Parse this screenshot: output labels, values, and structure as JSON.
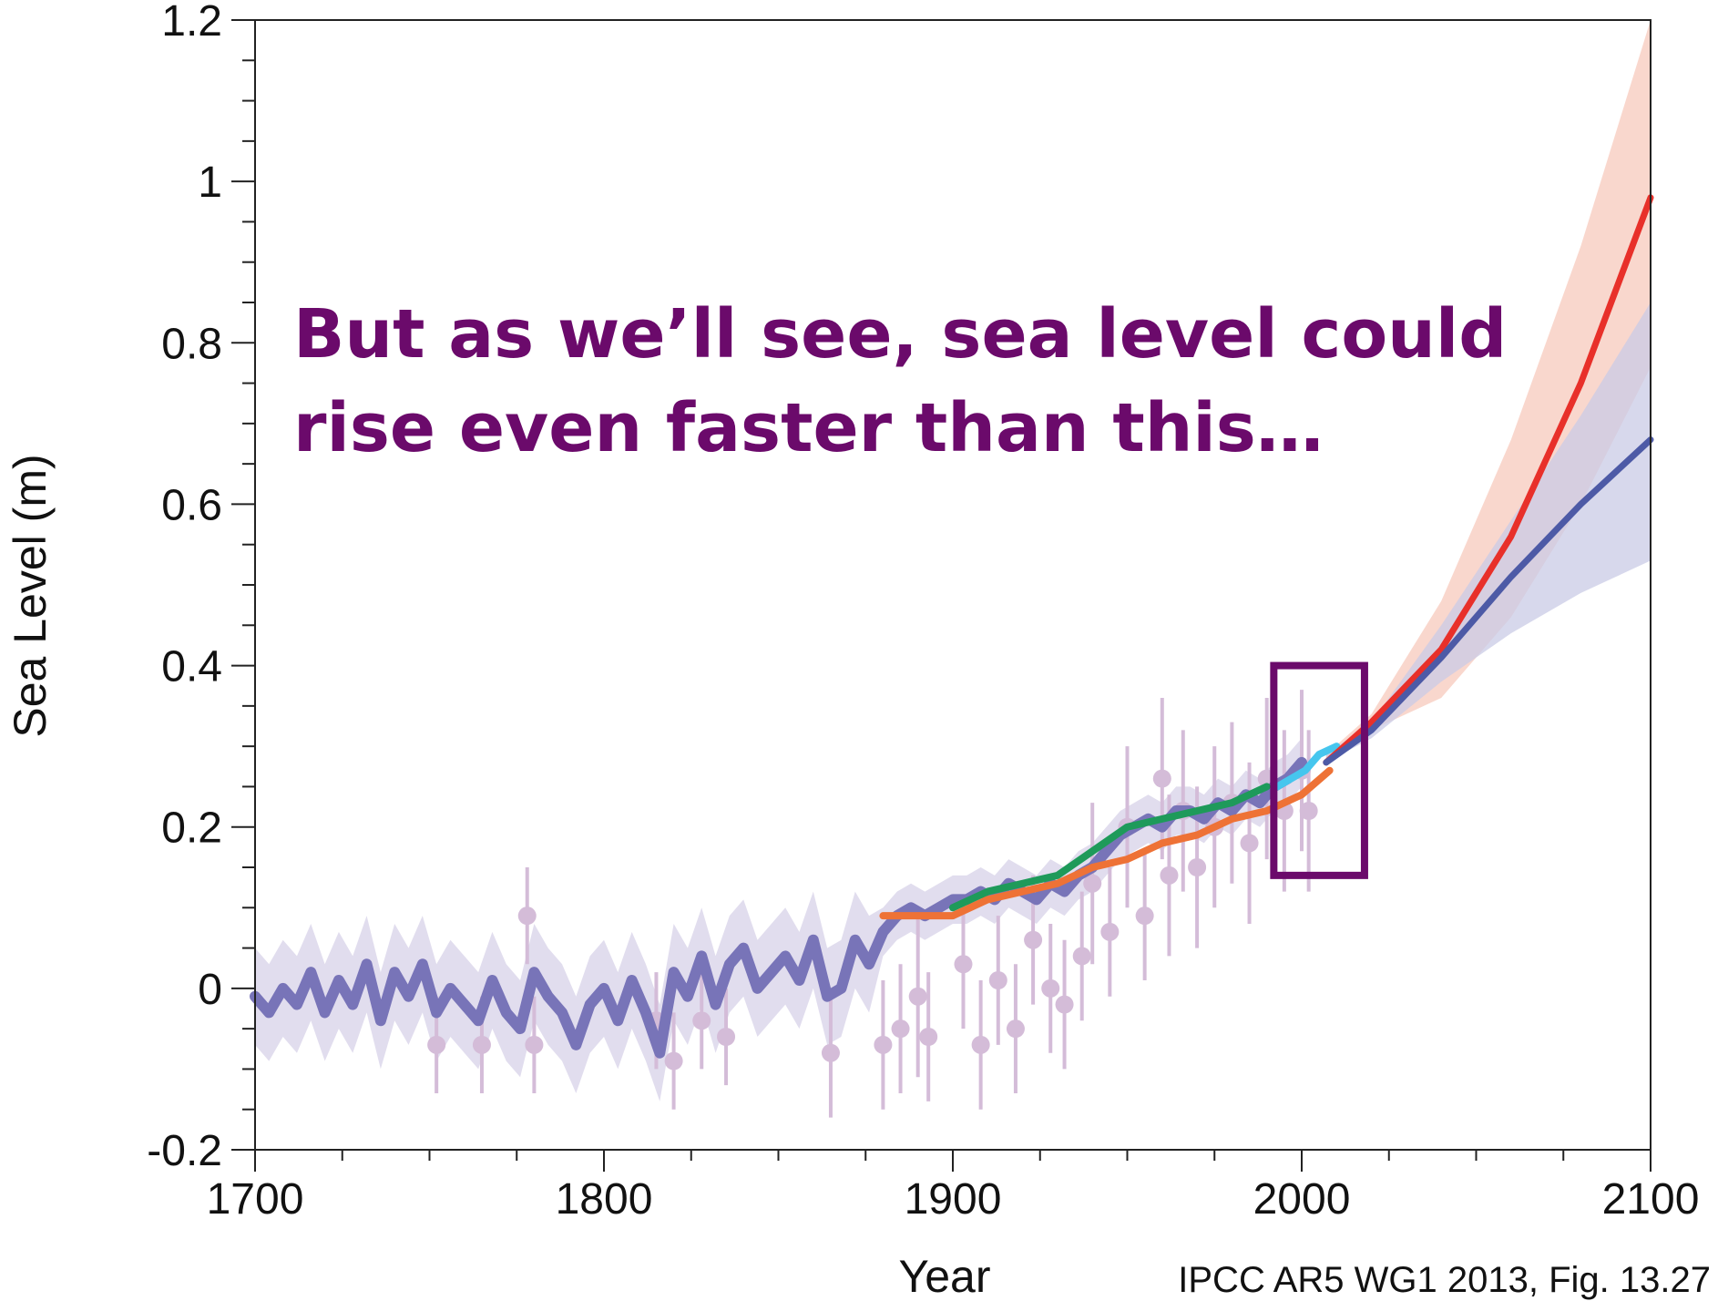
{
  "chart_data": {
    "type": "line",
    "title": "",
    "xlabel": "Year",
    "ylabel": "Sea Level (m)",
    "xlim": [
      1700,
      2100
    ],
    "ylim": [
      -0.2,
      1.2
    ],
    "x_ticks": [
      1700,
      1800,
      1900,
      2000,
      2100
    ],
    "y_ticks": [
      -0.2,
      0,
      0.2,
      0.4,
      0.6,
      0.8,
      1,
      1.2
    ],
    "x_tick_labels": [
      "1700",
      "1800",
      "1900",
      "2000",
      "2100"
    ],
    "y_tick_labels": [
      "-0.2",
      "0",
      "0.2",
      "0.4",
      "0.6",
      "0.8",
      "1",
      "1.2"
    ],
    "grid": false,
    "colors": {
      "reconstruction": "#7874b8",
      "reconstruction_band": "#d9d5ea",
      "proxy": "#d4bcd8",
      "green": "#1e9a5a",
      "orange": "#ee7236",
      "cyan": "#46c6ee",
      "red": "#e8302a",
      "red_band": "#f7c9bc",
      "blue": "#4d5aa6",
      "blue_band": "#c9cbe6",
      "highlight": "#6b0a6b"
    },
    "series": [
      {
        "id": "reconstruction",
        "x": [
          1700,
          1704,
          1708,
          1712,
          1716,
          1720,
          1724,
          1728,
          1732,
          1736,
          1740,
          1744,
          1748,
          1752,
          1756,
          1760,
          1764,
          1768,
          1772,
          1776,
          1780,
          1784,
          1788,
          1792,
          1796,
          1800,
          1804,
          1808,
          1812,
          1816,
          1820,
          1824,
          1828,
          1832,
          1836,
          1840,
          1844,
          1848,
          1852,
          1856,
          1860,
          1864,
          1868,
          1872,
          1876,
          1880,
          1884,
          1888,
          1892,
          1896,
          1900,
          1904,
          1908,
          1912,
          1916,
          1920,
          1924,
          1928,
          1932,
          1936,
          1940,
          1944,
          1948,
          1952,
          1956,
          1960,
          1964,
          1968,
          1972,
          1976,
          1980,
          1984,
          1988,
          1992,
          1996,
          2000
        ],
        "y": [
          -0.01,
          -0.03,
          0.0,
          -0.02,
          0.02,
          -0.03,
          0.01,
          -0.02,
          0.03,
          -0.04,
          0.02,
          -0.01,
          0.03,
          -0.03,
          0.0,
          -0.02,
          -0.04,
          0.01,
          -0.03,
          -0.05,
          0.02,
          -0.01,
          -0.03,
          -0.07,
          -0.02,
          0.0,
          -0.04,
          0.01,
          -0.03,
          -0.08,
          0.02,
          -0.01,
          0.04,
          -0.02,
          0.03,
          0.05,
          0.0,
          0.02,
          0.04,
          0.01,
          0.06,
          -0.01,
          0.0,
          0.06,
          0.03,
          0.07,
          0.09,
          0.1,
          0.09,
          0.1,
          0.11,
          0.11,
          0.12,
          0.11,
          0.13,
          0.12,
          0.11,
          0.13,
          0.12,
          0.14,
          0.15,
          0.17,
          0.19,
          0.2,
          0.21,
          0.2,
          0.22,
          0.22,
          0.21,
          0.23,
          0.22,
          0.24,
          0.23,
          0.25,
          0.26,
          0.28
        ]
      },
      {
        "id": "green",
        "x": [
          1900,
          1910,
          1920,
          1930,
          1940,
          1950,
          1960,
          1970,
          1980,
          1990
        ],
        "y": [
          0.1,
          0.12,
          0.13,
          0.14,
          0.17,
          0.2,
          0.21,
          0.22,
          0.23,
          0.25
        ]
      },
      {
        "id": "orange",
        "x": [
          1880,
          1890,
          1900,
          1910,
          1920,
          1930,
          1940,
          1950,
          1960,
          1970,
          1980,
          1990,
          2000,
          2008
        ],
        "y": [
          0.09,
          0.09,
          0.09,
          0.11,
          0.12,
          0.13,
          0.15,
          0.16,
          0.18,
          0.19,
          0.21,
          0.22,
          0.24,
          0.27
        ]
      },
      {
        "id": "cyan",
        "x": [
          1993,
          1997,
          2001,
          2005,
          2010
        ],
        "y": [
          0.25,
          0.26,
          0.27,
          0.29,
          0.3
        ]
      },
      {
        "id": "red",
        "x": [
          2007,
          2020,
          2040,
          2060,
          2080,
          2100
        ],
        "y": [
          0.28,
          0.33,
          0.42,
          0.56,
          0.75,
          0.98
        ]
      },
      {
        "id": "blue",
        "x": [
          2007,
          2020,
          2040,
          2060,
          2080,
          2100
        ],
        "y": [
          0.28,
          0.32,
          0.41,
          0.51,
          0.6,
          0.68
        ]
      }
    ],
    "bands": [
      {
        "id": "red_band",
        "x": [
          2007,
          2020,
          2040,
          2060,
          2080,
          2100
        ],
        "lower": [
          0.28,
          0.32,
          0.36,
          0.46,
          0.6,
          0.77
        ],
        "upper": [
          0.29,
          0.34,
          0.48,
          0.68,
          0.92,
          1.2
        ]
      },
      {
        "id": "blue_band",
        "x": [
          2007,
          2020,
          2040,
          2060,
          2080,
          2100
        ],
        "lower": [
          0.28,
          0.31,
          0.38,
          0.44,
          0.49,
          0.53
        ],
        "upper": [
          0.29,
          0.33,
          0.45,
          0.58,
          0.71,
          0.85
        ]
      }
    ],
    "proxy_points": [
      {
        "x": 1752,
        "y": -0.07,
        "err": 0.06
      },
      {
        "x": 1765,
        "y": -0.07,
        "err": 0.06
      },
      {
        "x": 1778,
        "y": 0.09,
        "err": 0.06
      },
      {
        "x": 1780,
        "y": -0.07,
        "err": 0.06
      },
      {
        "x": 1815,
        "y": -0.04,
        "err": 0.06
      },
      {
        "x": 1820,
        "y": -0.09,
        "err": 0.06
      },
      {
        "x": 1828,
        "y": -0.04,
        "err": 0.06
      },
      {
        "x": 1835,
        "y": -0.06,
        "err": 0.06
      },
      {
        "x": 1865,
        "y": -0.08,
        "err": 0.08
      },
      {
        "x": 1880,
        "y": -0.07,
        "err": 0.08
      },
      {
        "x": 1885,
        "y": -0.05,
        "err": 0.08
      },
      {
        "x": 1890,
        "y": -0.01,
        "err": 0.1
      },
      {
        "x": 1893,
        "y": -0.06,
        "err": 0.08
      },
      {
        "x": 1903,
        "y": 0.03,
        "err": 0.08
      },
      {
        "x": 1908,
        "y": -0.07,
        "err": 0.08
      },
      {
        "x": 1913,
        "y": 0.01,
        "err": 0.08
      },
      {
        "x": 1918,
        "y": -0.05,
        "err": 0.08
      },
      {
        "x": 1923,
        "y": 0.06,
        "err": 0.08
      },
      {
        "x": 1928,
        "y": 0.0,
        "err": 0.08
      },
      {
        "x": 1932,
        "y": -0.02,
        "err": 0.08
      },
      {
        "x": 1937,
        "y": 0.04,
        "err": 0.08
      },
      {
        "x": 1940,
        "y": 0.13,
        "err": 0.1
      },
      {
        "x": 1945,
        "y": 0.07,
        "err": 0.08
      },
      {
        "x": 1950,
        "y": 0.2,
        "err": 0.1
      },
      {
        "x": 1955,
        "y": 0.09,
        "err": 0.08
      },
      {
        "x": 1960,
        "y": 0.26,
        "err": 0.1
      },
      {
        "x": 1962,
        "y": 0.14,
        "err": 0.1
      },
      {
        "x": 1966,
        "y": 0.22,
        "err": 0.1
      },
      {
        "x": 1970,
        "y": 0.15,
        "err": 0.1
      },
      {
        "x": 1975,
        "y": 0.2,
        "err": 0.1
      },
      {
        "x": 1980,
        "y": 0.23,
        "err": 0.1
      },
      {
        "x": 1985,
        "y": 0.18,
        "err": 0.1
      },
      {
        "x": 1990,
        "y": 0.26,
        "err": 0.1
      },
      {
        "x": 1995,
        "y": 0.22,
        "err": 0.1
      },
      {
        "x": 2000,
        "y": 0.27,
        "err": 0.1
      },
      {
        "x": 2002,
        "y": 0.22,
        "err": 0.1
      }
    ],
    "highlight_box": {
      "x0": 1992,
      "x1": 2018,
      "y0": 0.14,
      "y1": 0.4
    },
    "annotation": {
      "line1": "But as we’ll see, sea level could",
      "line2": "rise even faster than this…"
    },
    "citation": "IPCC AR5 WG1 2013, Fig. 13.27"
  }
}
